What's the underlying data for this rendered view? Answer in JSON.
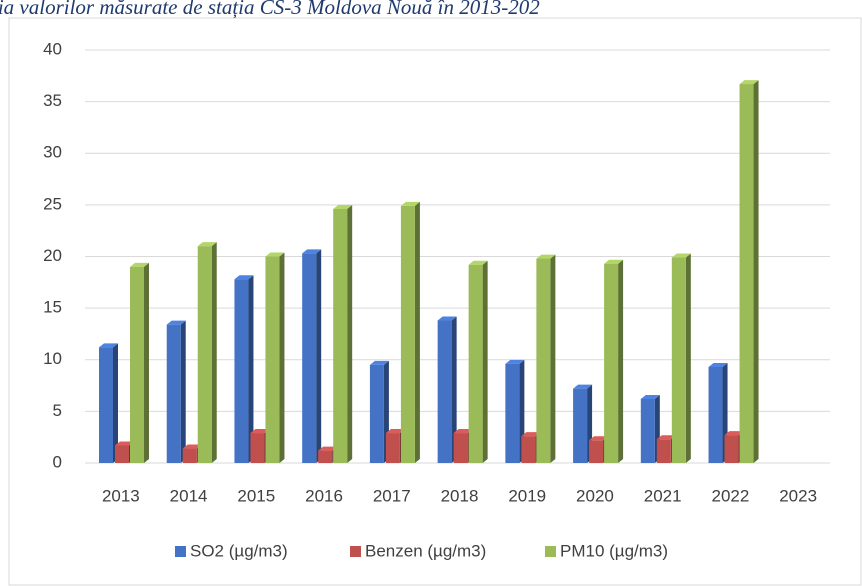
{
  "chart_data": {
    "type": "bar3d",
    "title": "ția valorilor măsurate de stația CS-3 Moldova Nouă în 2013-202",
    "categories": [
      "2013",
      "2014",
      "2015",
      "2016",
      "2017",
      "2018",
      "2019",
      "2020",
      "2021",
      "2022",
      "2023"
    ],
    "series": [
      {
        "name": "SO2 (µg/m3)",
        "color": "#4472c4",
        "values": [
          11.2,
          13.4,
          17.8,
          20.3,
          9.5,
          13.8,
          9.6,
          7.2,
          6.2,
          9.3,
          null
        ]
      },
      {
        "name": "Benzen (µg/m3)",
        "color": "#c0504d",
        "values": [
          1.7,
          1.4,
          2.9,
          1.2,
          2.9,
          2.9,
          2.6,
          2.2,
          2.3,
          2.7,
          null
        ]
      },
      {
        "name": "PM10 (µg/m3)",
        "color": "#9bbb59",
        "values": [
          19.0,
          21.0,
          20.0,
          24.6,
          24.9,
          19.2,
          19.8,
          19.3,
          19.9,
          36.7,
          null
        ]
      }
    ],
    "ylim": [
      0,
      40
    ],
    "yticks": [
      0,
      5,
      10,
      15,
      20,
      25,
      30,
      35,
      40
    ],
    "grid": true,
    "legend": "bottom"
  }
}
